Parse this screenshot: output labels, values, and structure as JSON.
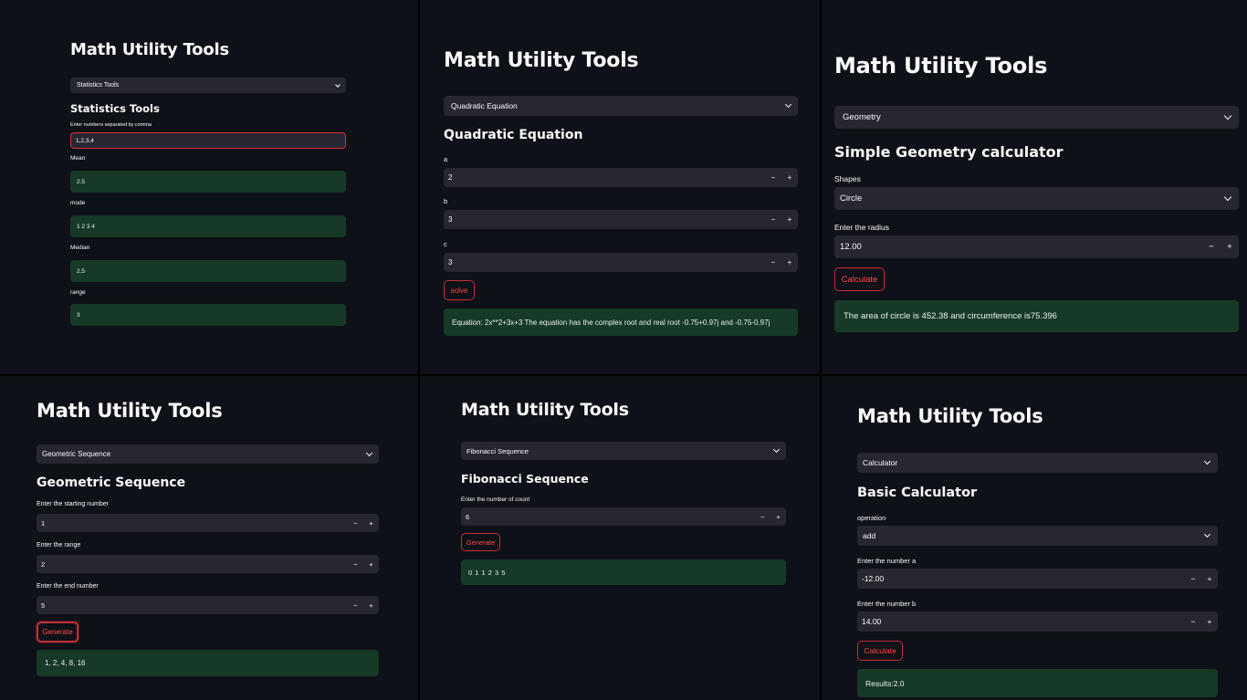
{
  "app_title": "Math Utility Tools",
  "statistics": {
    "select_value": "Statistics Tools",
    "heading": "Statistics Tools",
    "input_label": "Enter numbers separated by comma",
    "input_value": "1,2,3,4",
    "mean_label": "Mean",
    "mean_value": "2.5",
    "mode_label": "mode",
    "mode_value": "1 2 3 4",
    "median_label": "Median",
    "median_value": "2.5",
    "range_label": "range",
    "range_value": "3"
  },
  "quadratic": {
    "select_value": "Quadratic Equation",
    "heading": "Quadratic Equation",
    "a_label": "a",
    "a_value": "2",
    "b_label": "b",
    "b_value": "3",
    "c_label": "c",
    "c_value": "3",
    "button": "solve",
    "result": "Equation: 2x**2+3x+3 The equation has the complex root and real root -0.75+0.97j and -0.75-0.97j"
  },
  "geometry": {
    "select_value": "Geometry",
    "heading": "Simple Geometry calculator",
    "shapes_label": "Shapes",
    "shapes_value": "Circle",
    "radius_label": "Enter the radius",
    "radius_value": "12.00",
    "button": "Calculate",
    "result": "The area of circle is 452.38 and circumference is75.396"
  },
  "geometric": {
    "select_value": "Geometric Sequence",
    "heading": "Geometric Sequence",
    "start_label": "Enter the starting number",
    "start_value": "1",
    "range_label": "Enter the range",
    "range_value": "2",
    "end_label": "Enter the end number",
    "end_value": "5",
    "button": "Generate",
    "result": "1, 2, 4, 8, 16"
  },
  "fibonacci": {
    "select_value": "Fibonacci Sequence",
    "heading": "Fibonacci Sequence",
    "count_label": "Enter the number of count",
    "count_value": "6",
    "button": "Generate",
    "result": "0 1 1 2 3 5"
  },
  "calculator": {
    "select_value": "Calculator",
    "heading": "Basic Calculator",
    "op_label": "operation",
    "op_value": "add",
    "a_label": "Enter the number a",
    "a_value": "-12.00",
    "b_label": "Enter the number b",
    "b_value": "14.00",
    "button": "Calculate",
    "result": "Results:2.0"
  },
  "stepper": {
    "minus": "−",
    "plus": "+"
  }
}
